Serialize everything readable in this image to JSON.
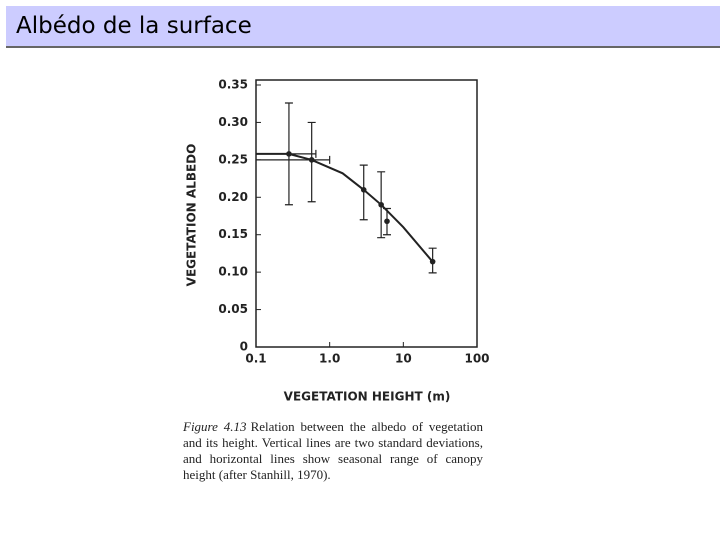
{
  "header": {
    "title": "Albédo de la surface"
  },
  "chart_data": {
    "type": "scatter",
    "xlabel": "VEGETATION HEIGHT (m)",
    "ylabel": "VEGETATION ALBEDO",
    "xscale": "log",
    "xlim": [
      0.1,
      100
    ],
    "ylim": [
      0,
      0.35
    ],
    "xticks": [
      0.1,
      {
        "value": 1,
        "label": "1.0"
      },
      10,
      100
    ],
    "yticks": [
      0,
      0.05,
      {
        "value": 0.1,
        "label": "0.10"
      },
      0.15,
      {
        "value": 0.2,
        "label": "0.20"
      },
      0.25,
      {
        "value": 0.3,
        "label": "0.30"
      },
      0.35
    ],
    "color": "#222",
    "x": [
      0.28,
      0.57,
      2.9,
      5.0,
      6.0,
      25
    ],
    "values": [
      0.258,
      0.25,
      0.21,
      0.19,
      0.168,
      0.114
    ],
    "y_low": [
      0.19,
      0.194,
      0.17,
      0.146,
      0.15,
      0.099
    ],
    "y_high": [
      0.326,
      0.3,
      0.243,
      0.234,
      0.185,
      0.132
    ],
    "x_low": [
      0.1,
      0.1,
      null,
      null,
      null,
      null
    ],
    "x_high": [
      0.65,
      1.0,
      null,
      null,
      null,
      null
    ],
    "curve": {
      "x": [
        0.1,
        0.28,
        0.57,
        1.5,
        2.9,
        5.0,
        10,
        25
      ],
      "values": [
        0.258,
        0.258,
        0.25,
        0.232,
        0.21,
        0.19,
        0.16,
        0.114
      ]
    }
  },
  "caption": {
    "label": "Figure 4.13",
    "text": "Relation between the albedo of vegetation and its height. Vertical lines are two standard deviations, and horizontal lines show seasonal range of canopy height (after Stanhill, 1970)."
  }
}
